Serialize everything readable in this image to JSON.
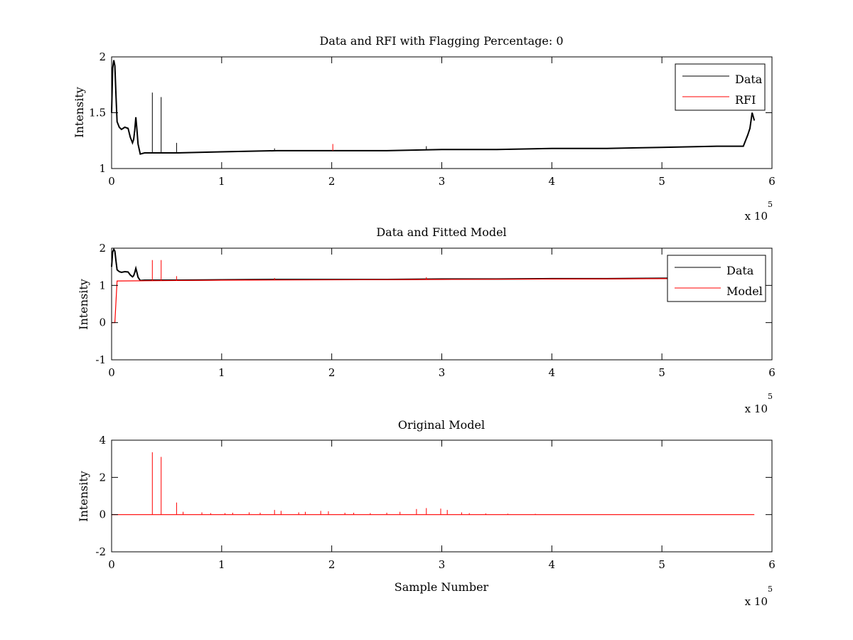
{
  "chart_data": [
    {
      "type": "line",
      "title": "Data and RFI with Flagging Percentage: 0",
      "xlabel": "",
      "ylabel": "Intensity",
      "xlim": [
        0,
        600000
      ],
      "ylim": [
        1,
        2
      ],
      "xticks": [
        0,
        1,
        2,
        3,
        4,
        5,
        6
      ],
      "yticks": [
        1,
        1.5,
        2
      ],
      "x_multiplier": "x 10",
      "x_multiplier_exp": "5",
      "grid": false,
      "legend_position": "top-right",
      "colors": {
        "data": "#000000",
        "rfi": "#ff0000"
      },
      "series": [
        {
          "name": "Data",
          "x": [
            0,
            1000,
            2000,
            3000,
            4000,
            5000,
            7000,
            9000,
            12000,
            15000,
            17000,
            19000,
            20000,
            21000,
            22000,
            23000,
            24000,
            26000,
            30000,
            60000,
            100000,
            150000,
            200000,
            250000,
            300000,
            350000,
            400000,
            450000,
            500000,
            550000,
            570000,
            574000,
            578000,
            580000,
            582000,
            584000
          ],
          "y": [
            1.5,
            1.9,
            1.97,
            1.92,
            1.65,
            1.42,
            1.37,
            1.35,
            1.37,
            1.36,
            1.28,
            1.23,
            1.26,
            1.34,
            1.46,
            1.35,
            1.22,
            1.13,
            1.14,
            1.14,
            1.15,
            1.16,
            1.16,
            1.16,
            1.17,
            1.17,
            1.18,
            1.18,
            1.19,
            1.2,
            1.2,
            1.2,
            1.3,
            1.36,
            1.5,
            1.43
          ],
          "spikes": [
            {
              "x": 37000,
              "y": 1.68
            },
            {
              "x": 45000,
              "y": 1.64
            },
            {
              "x": 59000,
              "y": 1.23
            },
            {
              "x": 148000,
              "y": 1.18
            },
            {
              "x": 286000,
              "y": 1.2
            }
          ]
        },
        {
          "name": "RFI",
          "x": [],
          "y": [],
          "spikes": [
            {
              "x": 201000,
              "y": 1.22
            }
          ]
        }
      ]
    },
    {
      "type": "line",
      "title": "Data and Fitted Model",
      "xlabel": "",
      "ylabel": "Intensity",
      "xlim": [
        0,
        600000
      ],
      "ylim": [
        -1,
        2
      ],
      "xticks": [
        0,
        1,
        2,
        3,
        4,
        5,
        6
      ],
      "yticks": [
        -1,
        0,
        1,
        2
      ],
      "x_multiplier": "x 10",
      "x_multiplier_exp": "5",
      "grid": false,
      "legend_position": "top-right",
      "colors": {
        "data": "#000000",
        "model": "#ff0000"
      },
      "series": [
        {
          "name": "Data",
          "x": [
            0,
            1000,
            2000,
            3000,
            4000,
            5000,
            7000,
            9000,
            12000,
            15000,
            17000,
            19000,
            20000,
            21000,
            22000,
            23000,
            24000,
            26000,
            30000,
            60000,
            100000,
            150000,
            200000,
            250000,
            300000,
            350000,
            400000,
            450000,
            500000,
            584000
          ],
          "y": [
            1.5,
            1.9,
            1.97,
            1.92,
            1.65,
            1.42,
            1.37,
            1.35,
            1.37,
            1.36,
            1.28,
            1.23,
            1.26,
            1.34,
            1.46,
            1.35,
            1.22,
            1.13,
            1.14,
            1.14,
            1.15,
            1.16,
            1.16,
            1.16,
            1.17,
            1.17,
            1.18,
            1.18,
            1.19,
            1.2
          ],
          "spikes": []
        },
        {
          "name": "Model",
          "x": [
            0,
            3000,
            5000,
            100000,
            200000,
            300000,
            400000,
            500000,
            584000
          ],
          "y": [
            0,
            0,
            1.12,
            1.14,
            1.15,
            1.16,
            1.17,
            1.18,
            1.19
          ],
          "spikes": [
            {
              "x": 37000,
              "y": 1.68
            },
            {
              "x": 45000,
              "y": 1.68
            },
            {
              "x": 59000,
              "y": 1.25
            },
            {
              "x": 148000,
              "y": 1.2
            },
            {
              "x": 286000,
              "y": 1.22
            }
          ]
        }
      ]
    },
    {
      "type": "line",
      "title": "Original Model",
      "xlabel": "Sample Number",
      "ylabel": "Intensity",
      "xlim": [
        0,
        600000
      ],
      "ylim": [
        -2,
        4
      ],
      "xticks": [
        0,
        1,
        2,
        3,
        4,
        5,
        6
      ],
      "yticks": [
        -2,
        0,
        2,
        4
      ],
      "x_multiplier": "x 10",
      "x_multiplier_exp": "5",
      "grid": false,
      "colors": {
        "model": "#ff0000"
      },
      "series": [
        {
          "name": "",
          "x": [
            0,
            584000
          ],
          "y": [
            0,
            0
          ],
          "spikes": [
            {
              "x": 37000,
              "y": 3.35
            },
            {
              "x": 45000,
              "y": 3.1
            },
            {
              "x": 59000,
              "y": 0.65
            },
            {
              "x": 65000,
              "y": 0.15
            },
            {
              "x": 82000,
              "y": 0.12
            },
            {
              "x": 90000,
              "y": 0.08
            },
            {
              "x": 103000,
              "y": 0.08
            },
            {
              "x": 110000,
              "y": 0.1
            },
            {
              "x": 125000,
              "y": 0.12
            },
            {
              "x": 135000,
              "y": 0.1
            },
            {
              "x": 148000,
              "y": 0.25
            },
            {
              "x": 154000,
              "y": 0.2
            },
            {
              "x": 170000,
              "y": 0.12
            },
            {
              "x": 176000,
              "y": 0.15
            },
            {
              "x": 190000,
              "y": 0.2
            },
            {
              "x": 197000,
              "y": 0.18
            },
            {
              "x": 212000,
              "y": 0.1
            },
            {
              "x": 220000,
              "y": 0.1
            },
            {
              "x": 235000,
              "y": 0.08
            },
            {
              "x": 250000,
              "y": 0.1
            },
            {
              "x": 262000,
              "y": 0.15
            },
            {
              "x": 277000,
              "y": 0.3
            },
            {
              "x": 286000,
              "y": 0.35
            },
            {
              "x": 299000,
              "y": 0.32
            },
            {
              "x": 305000,
              "y": 0.25
            },
            {
              "x": 318000,
              "y": 0.12
            },
            {
              "x": 325000,
              "y": 0.08
            },
            {
              "x": 340000,
              "y": 0.06
            },
            {
              "x": 360000,
              "y": 0.05
            },
            {
              "x": 385000,
              "y": 0.04
            }
          ]
        }
      ]
    }
  ]
}
